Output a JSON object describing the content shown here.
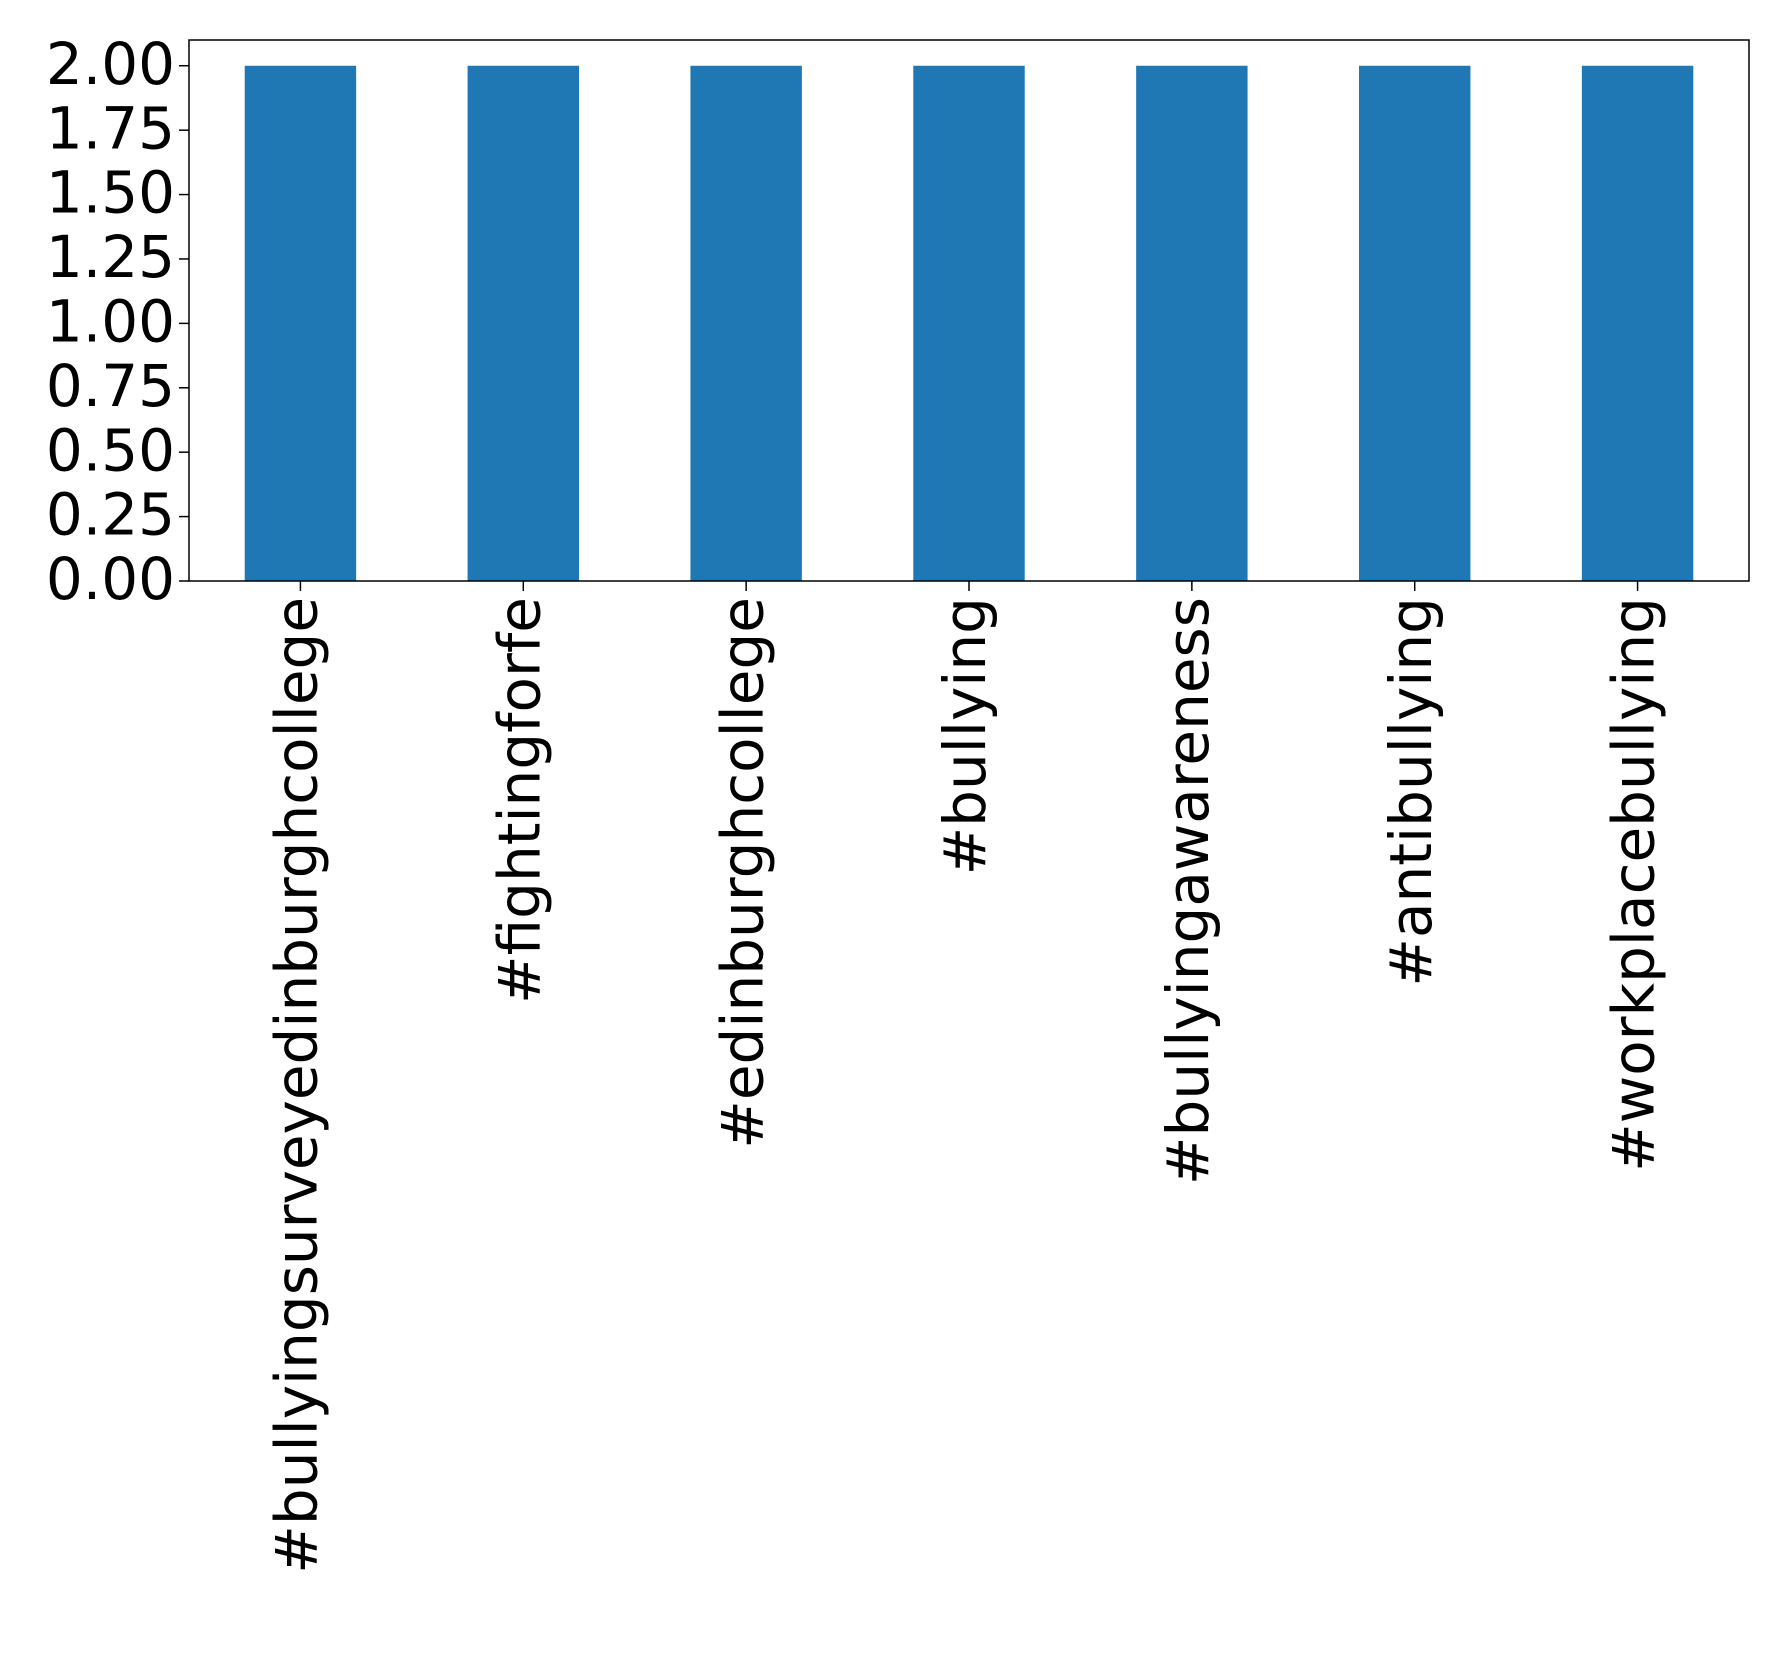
{
  "chart_data": {
    "type": "bar",
    "categories": [
      "#bullyingsurveyedinburghcollege",
      "#fightingforfe",
      "#edinburghcollege",
      "#bullying",
      "#bullyingawareness",
      "#antibullying",
      "#workplacebullying"
    ],
    "values": [
      2,
      2,
      2,
      2,
      2,
      2,
      2
    ],
    "color": "#1f77b4",
    "ylim": [
      0,
      2.1
    ],
    "yticks": [
      {
        "value": 0,
        "label": "0.00"
      },
      {
        "value": 0.25,
        "label": "0.25"
      },
      {
        "value": 0.5,
        "label": "0.50"
      },
      {
        "value": 0.75,
        "label": "0.75"
      },
      {
        "value": 1,
        "label": "1.00"
      },
      {
        "value": 1.25,
        "label": "1.25"
      },
      {
        "value": 1.5,
        "label": "1.50"
      },
      {
        "value": 1.75,
        "label": "1.75"
      },
      {
        "value": 2,
        "label": "2.00"
      }
    ],
    "grid": false
  }
}
